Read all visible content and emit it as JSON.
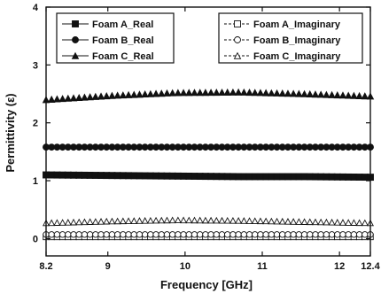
{
  "chart_data": {
    "type": "scatter",
    "xlabel": "Frequency [GHz]",
    "ylabel": "Permittivity (ε)",
    "xlim": [
      8.2,
      12.4
    ],
    "ylim": [
      -0.3,
      4
    ],
    "x_ticks": [
      "8.2",
      "9",
      "10",
      "11",
      "12",
      "12.4"
    ],
    "x_tick_values": [
      8.2,
      9,
      10,
      11,
      12,
      12.4
    ],
    "y_ticks": [
      "0",
      "1",
      "2",
      "3",
      "4"
    ],
    "y_tick_values": [
      0,
      1,
      2,
      3,
      4
    ],
    "grid": false,
    "point_count": 60,
    "series": [
      {
        "name": "Foam A_Real",
        "marker": "square",
        "filled": true,
        "values": [
          1.1,
          1.09,
          1.08,
          1.07,
          1.07,
          1.06
        ]
      },
      {
        "name": "Foam B_Real",
        "marker": "circle",
        "filled": true,
        "values": [
          1.58,
          1.58,
          1.58,
          1.58,
          1.58,
          1.58
        ]
      },
      {
        "name": "Foam C_Real",
        "marker": "triangle",
        "filled": true,
        "values": [
          2.4,
          2.47,
          2.52,
          2.53,
          2.5,
          2.46
        ]
      },
      {
        "name": "Foam A_Imaginary",
        "marker": "square",
        "filled": false,
        "values": [
          0.03,
          0.03,
          0.03,
          0.03,
          0.03,
          0.03
        ]
      },
      {
        "name": "Foam B_Imaginary",
        "marker": "circle",
        "filled": false,
        "values": [
          0.07,
          0.07,
          0.07,
          0.07,
          0.07,
          0.07
        ]
      },
      {
        "name": "Foam C_Imaginary",
        "marker": "triangle",
        "filled": false,
        "values": [
          0.27,
          0.3,
          0.32,
          0.31,
          0.29,
          0.27
        ]
      }
    ],
    "legend_left": [
      "Foam A_Real",
      "Foam B_Real",
      "Foam C_Real"
    ],
    "legend_right": [
      "Foam A_Imaginary",
      "Foam B_Imaginary",
      "Foam C_Imaginary"
    ]
  }
}
